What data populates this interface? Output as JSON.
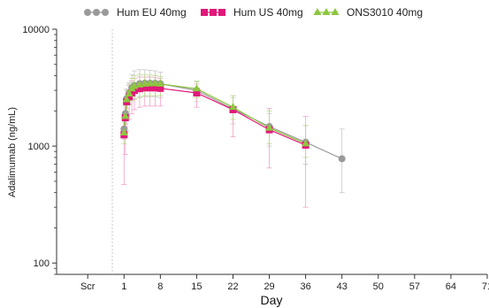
{
  "chart_data": {
    "type": "line",
    "title": "",
    "xlabel": "Day",
    "ylabel": "Adalimumab (ng/mL)",
    "yscale": "log",
    "ylim": [
      80,
      10000
    ],
    "xlim": [
      -12,
      71
    ],
    "xticks": [
      {
        "label": "Scr",
        "value": -6
      },
      {
        "label": "1",
        "value": 1
      },
      {
        "label": "8",
        "value": 8
      },
      {
        "label": "15",
        "value": 15
      },
      {
        "label": "22",
        "value": 22
      },
      {
        "label": "29",
        "value": 29
      },
      {
        "label": "36",
        "value": 36
      },
      {
        "label": "43",
        "value": 43
      },
      {
        "label": "50",
        "value": 50
      },
      {
        "label": "57",
        "value": 57
      },
      {
        "label": "64",
        "value": 64
      },
      {
        "label": "71",
        "value": 71
      }
    ],
    "yticks": [
      {
        "label": "100",
        "value": 100
      },
      {
        "label": "1000",
        "value": 1000
      },
      {
        "label": "10000",
        "value": 10000
      }
    ],
    "legend_position": "top",
    "grid": false,
    "series": [
      {
        "name": "Hum EU 40mg",
        "color": "#9a9a9a",
        "marker": "circle",
        "errorbar_color": "#c8c8c8",
        "x": [
          1,
          1.25,
          1.5,
          2,
          2.5,
          3,
          4,
          5,
          6,
          7,
          8,
          15,
          22,
          29,
          36,
          43
        ],
        "y": [
          1400,
          1900,
          2550,
          2850,
          3150,
          3300,
          3420,
          3450,
          3450,
          3450,
          3420,
          3000,
          2080,
          1470,
          1080,
          780
        ],
        "err_low": [
          1150,
          1550,
          2100,
          2300,
          2450,
          2500,
          2600,
          2650,
          2650,
          2650,
          2600,
          2400,
          1550,
          1000,
          700,
          400
        ],
        "err_high": [
          1750,
          2350,
          3100,
          3500,
          4100,
          4400,
          4500,
          4500,
          4450,
          4400,
          4300,
          3550,
          2600,
          1900,
          1500,
          1400
        ]
      },
      {
        "name": "Hum US 40mg",
        "color": "#e0187a",
        "marker": "square",
        "errorbar_color": "#f0a0c8",
        "x": [
          1,
          1.25,
          1.5,
          2,
          2.5,
          3,
          4,
          5,
          6,
          7,
          8,
          15,
          22,
          29,
          36
        ],
        "y": [
          1250,
          1750,
          2400,
          2650,
          2850,
          3000,
          3100,
          3150,
          3150,
          3150,
          3120,
          2850,
          2050,
          1380,
          1020
        ],
        "err_low": [
          470,
          850,
          1350,
          1700,
          1900,
          2050,
          2150,
          2200,
          2200,
          2200,
          2200,
          2150,
          1200,
          650,
          300
        ],
        "err_high": [
          1800,
          2500,
          3000,
          3300,
          3600,
          3800,
          3900,
          3900,
          3900,
          3850,
          3800,
          3400,
          2700,
          2100,
          1800
        ]
      },
      {
        "name": "ONS3010 40mg",
        "color": "#8dc63f",
        "marker": "triangle",
        "errorbar_color": "#b8dc8a",
        "x": [
          1,
          1.25,
          1.5,
          2,
          2.5,
          3,
          4,
          5,
          6,
          7,
          8,
          15,
          22,
          29,
          36
        ],
        "y": [
          1300,
          1800,
          2500,
          2800,
          3100,
          3250,
          3350,
          3400,
          3420,
          3430,
          3400,
          3100,
          2150,
          1430,
          1050
        ],
        "err_low": [
          1050,
          1450,
          2000,
          2250,
          2450,
          2550,
          2650,
          2700,
          2700,
          2700,
          2700,
          2600,
          1700,
          1050,
          800
        ],
        "err_high": [
          1600,
          2200,
          3000,
          3400,
          3800,
          4000,
          4100,
          4100,
          4050,
          4000,
          3950,
          3600,
          2700,
          2000,
          1500
        ]
      }
    ]
  }
}
